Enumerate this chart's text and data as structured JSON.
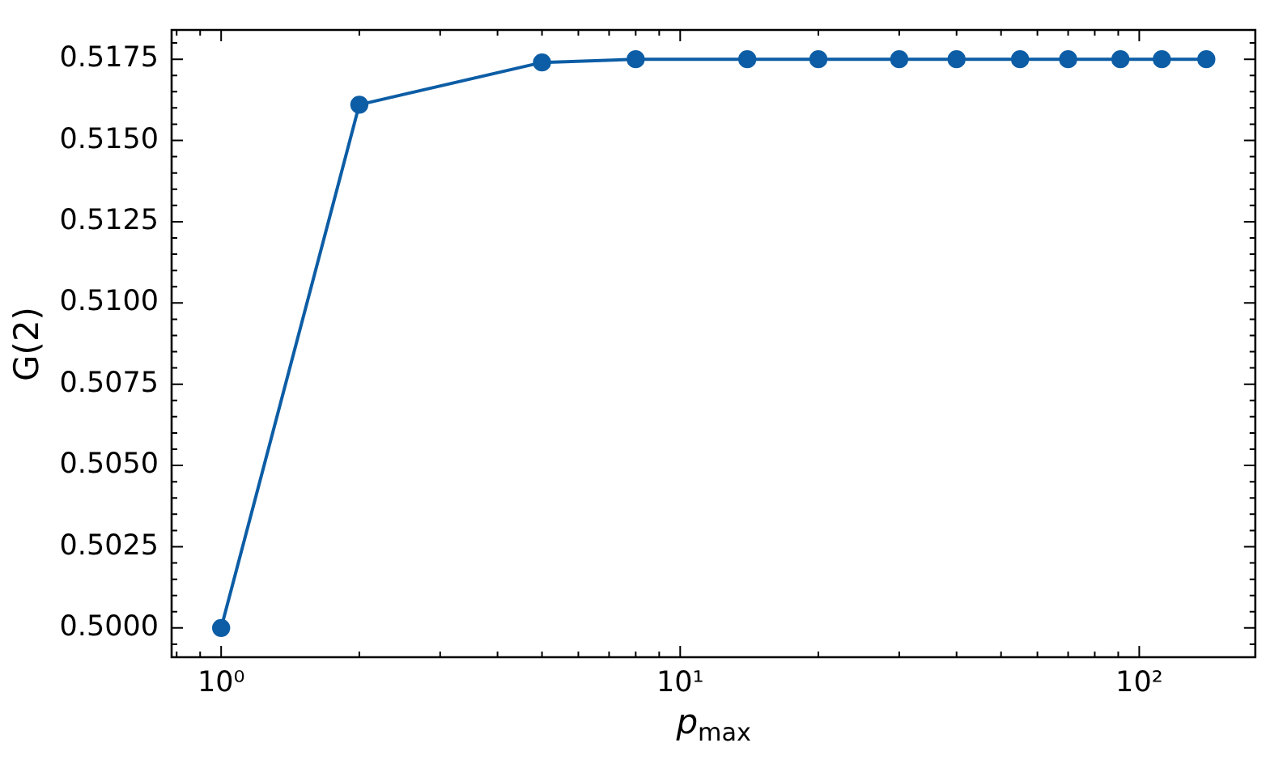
{
  "chart_data": {
    "type": "line",
    "xlabel": "p$_{max}$",
    "ylabel": "G(2)",
    "x": [
      1,
      2,
      5,
      8,
      14,
      20,
      30,
      40,
      55,
      70,
      91,
      112,
      140
    ],
    "series": [
      {
        "color": "#0c5da5",
        "values": [
          0.5,
          0.5161,
          0.5174,
          0.5175,
          0.5175,
          0.5175,
          0.5175,
          0.5175,
          0.5175,
          0.5175,
          0.5175,
          0.5175,
          0.5175
        ]
      }
    ],
    "log": "x",
    "marker": "circle",
    "line_style": "solid",
    "xlim": [
      0.78,
      179
    ],
    "ylim": [
      0.4991,
      0.5184
    ],
    "xticks": [
      {
        "value": 0.8,
        "label": null
      },
      {
        "value": 0.9,
        "label": null
      },
      {
        "value": 1,
        "label": "10⁰"
      },
      {
        "value": 2,
        "label": null
      },
      {
        "value": 3,
        "label": null
      },
      {
        "value": 4,
        "label": null
      },
      {
        "value": 5,
        "label": null
      },
      {
        "value": 6,
        "label": null
      },
      {
        "value": 7,
        "label": null
      },
      {
        "value": 8,
        "label": null
      },
      {
        "value": 9,
        "label": null
      },
      {
        "value": 10,
        "label": "10¹"
      },
      {
        "value": 20,
        "label": null
      },
      {
        "value": 30,
        "label": null
      },
      {
        "value": 40,
        "label": null
      },
      {
        "value": 50,
        "label": null
      },
      {
        "value": 60,
        "label": null
      },
      {
        "value": 70,
        "label": null
      },
      {
        "value": 80,
        "label": null
      },
      {
        "value": 90,
        "label": null
      },
      {
        "value": 100,
        "label": "10²"
      }
    ],
    "yticks": [
      {
        "value": 0.4995,
        "label": null
      },
      {
        "value": 0.5,
        "label": "0.5000"
      },
      {
        "value": 0.5005,
        "label": null
      },
      {
        "value": 0.501,
        "label": null
      },
      {
        "value": 0.5015,
        "label": null
      },
      {
        "value": 0.502,
        "label": null
      },
      {
        "value": 0.5025,
        "label": "0.5025"
      },
      {
        "value": 0.503,
        "label": null
      },
      {
        "value": 0.5035,
        "label": null
      },
      {
        "value": 0.504,
        "label": null
      },
      {
        "value": 0.5045,
        "label": null
      },
      {
        "value": 0.505,
        "label": "0.5050"
      },
      {
        "value": 0.5055,
        "label": null
      },
      {
        "value": 0.506,
        "label": null
      },
      {
        "value": 0.5065,
        "label": null
      },
      {
        "value": 0.507,
        "label": null
      },
      {
        "value": 0.5075,
        "label": "0.5075"
      },
      {
        "value": 0.508,
        "label": null
      },
      {
        "value": 0.5085,
        "label": null
      },
      {
        "value": 0.509,
        "label": null
      },
      {
        "value": 0.5095,
        "label": null
      },
      {
        "value": 0.51,
        "label": "0.5100"
      },
      {
        "value": 0.5105,
        "label": null
      },
      {
        "value": 0.511,
        "label": null
      },
      {
        "value": 0.5115,
        "label": null
      },
      {
        "value": 0.512,
        "label": null
      },
      {
        "value": 0.5125,
        "label": "0.5125"
      },
      {
        "value": 0.513,
        "label": null
      },
      {
        "value": 0.5135,
        "label": null
      },
      {
        "value": 0.514,
        "label": null
      },
      {
        "value": 0.5145,
        "label": null
      },
      {
        "value": 0.515,
        "label": "0.5150"
      },
      {
        "value": 0.5155,
        "label": null
      },
      {
        "value": 0.516,
        "label": null
      },
      {
        "value": 0.5165,
        "label": null
      },
      {
        "value": 0.517,
        "label": null
      },
      {
        "value": 0.5175,
        "label": "0.5175"
      },
      {
        "value": 0.518,
        "label": null
      }
    ]
  }
}
